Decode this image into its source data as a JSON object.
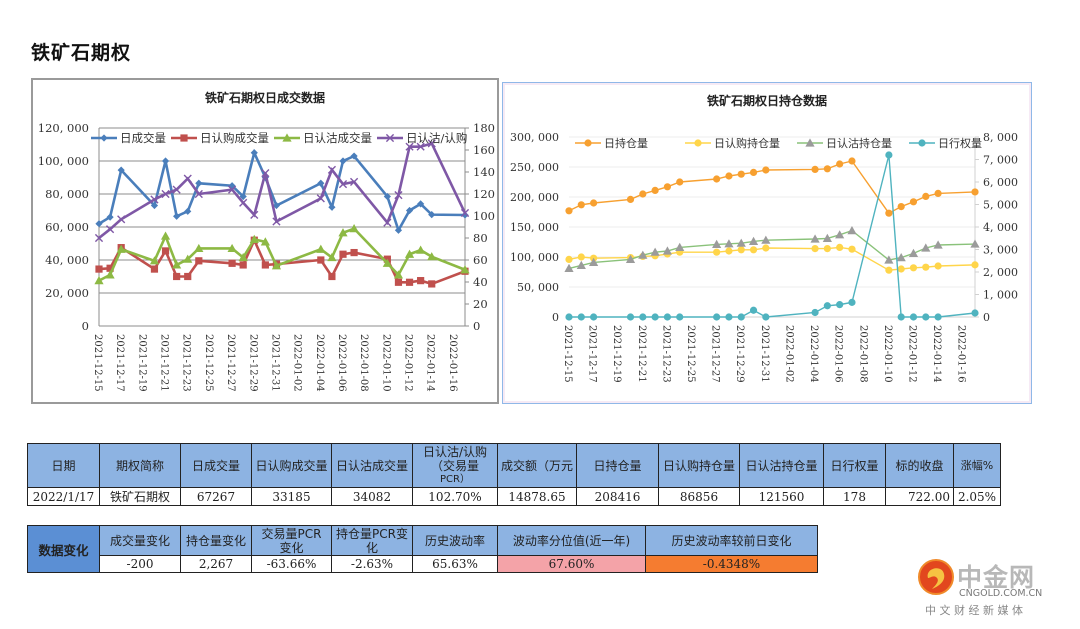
{
  "page": {
    "title": "铁矿石期权"
  },
  "chart_data": [
    {
      "type": "line",
      "title": "铁矿石期权日成交数据",
      "x_axis_type": "date",
      "xlim": [
        "2021-12-15",
        "2022-01-17"
      ],
      "x_tick_labels": [
        "2021-12-15",
        "2021-12-17",
        "2021-12-19",
        "2021-12-21",
        "2021-12-23",
        "2021-12-25",
        "2021-12-27",
        "2021-12-29",
        "2021-12-31",
        "2022-01-02",
        "2022-01-04",
        "2022-01-06",
        "2022-01-08",
        "2022-01-10",
        "2022-01-12",
        "2022-01-14",
        "2022-01-16"
      ],
      "x": [
        "2021-12-15",
        "2021-12-16",
        "2021-12-17",
        "2021-12-20",
        "2021-12-21",
        "2021-12-22",
        "2021-12-23",
        "2021-12-24",
        "2021-12-27",
        "2021-12-28",
        "2021-12-29",
        "2021-12-30",
        "2021-12-31",
        "2022-01-04",
        "2022-01-05",
        "2022-01-06",
        "2022-01-07",
        "2022-01-10",
        "2022-01-11",
        "2022-01-12",
        "2022-01-13",
        "2022-01-14",
        "2022-01-17"
      ],
      "y_left": {
        "ylim": [
          0,
          120000
        ],
        "ticks": [
          "0",
          "20, 000",
          "40, 000",
          "60, 000",
          "80, 000",
          "100, 000",
          "120, 000"
        ],
        "tick_values": [
          0,
          20000,
          40000,
          60000,
          80000,
          100000,
          120000
        ]
      },
      "y_right": {
        "ylim": [
          0,
          180
        ],
        "ticks": [
          "0",
          "20",
          "40",
          "60",
          "80",
          "100",
          "120",
          "140",
          "160",
          "180"
        ],
        "tick_values": [
          0,
          20,
          40,
          60,
          80,
          100,
          120,
          140,
          160,
          180
        ]
      },
      "legend_position": "top",
      "grid": true,
      "series": [
        {
          "name": "日成交量",
          "axis": "left",
          "color": "#4a7ebb",
          "marker": "diamond",
          "values": [
            62000,
            66000,
            94500,
            73000,
            100000,
            66500,
            69500,
            86500,
            85000,
            78500,
            105000,
            90000,
            73000,
            86500,
            72000,
            100000,
            103000,
            78500,
            58000,
            70000,
            74000,
            67500,
            67267
          ]
        },
        {
          "name": "日认购成交量",
          "axis": "left",
          "color": "#c0504d",
          "marker": "square",
          "values": [
            34500,
            35000,
            47500,
            34500,
            45500,
            30000,
            30000,
            39500,
            38000,
            37000,
            52000,
            37000,
            37500,
            40000,
            30000,
            43500,
            44500,
            40500,
            26500,
            26500,
            27500,
            25500,
            33185
          ]
        },
        {
          "name": "日认沽成交量",
          "axis": "left",
          "color": "#8db944",
          "marker": "triangle",
          "values": [
            27500,
            31000,
            46500,
            39500,
            54500,
            37000,
            40500,
            47000,
            47000,
            41500,
            52500,
            51000,
            36500,
            46500,
            41500,
            56500,
            59000,
            38000,
            31000,
            43500,
            46000,
            42000,
            34082
          ]
        },
        {
          "name": "日认沽/认购",
          "axis": "right",
          "color": "#7f58a6",
          "marker": "x",
          "values": [
            80,
            88,
            97,
            115,
            120,
            124,
            134,
            120,
            124,
            112,
            101,
            139,
            95,
            116,
            142,
            129,
            131,
            94,
            119,
            163,
            163,
            166,
            102.7
          ]
        }
      ]
    },
    {
      "type": "line",
      "title": "铁矿石期权日持仓数据",
      "x_axis_type": "date",
      "xlim": [
        "2021-12-15",
        "2022-01-17"
      ],
      "x_tick_labels": [
        "2021-12-15",
        "2021-12-17",
        "2021-12-19",
        "2021-12-21",
        "2021-12-23",
        "2021-12-25",
        "2021-12-27",
        "2021-12-29",
        "2021-12-31",
        "2022-01-02",
        "2022-01-04",
        "2022-01-06",
        "2022-01-08",
        "2022-01-10",
        "2022-01-12",
        "2022-01-14",
        "2022-01-16"
      ],
      "x": [
        "2021-12-15",
        "2021-12-16",
        "2021-12-17",
        "2021-12-20",
        "2021-12-21",
        "2021-12-22",
        "2021-12-23",
        "2021-12-24",
        "2021-12-27",
        "2021-12-28",
        "2021-12-29",
        "2021-12-30",
        "2021-12-31",
        "2022-01-04",
        "2022-01-05",
        "2022-01-06",
        "2022-01-07",
        "2022-01-10",
        "2022-01-11",
        "2022-01-12",
        "2022-01-13",
        "2022-01-14",
        "2022-01-17"
      ],
      "y_left": {
        "ylim": [
          0,
          300000
        ],
        "ticks": [
          "0",
          "50, 000",
          "100, 000",
          "150, 000",
          "200, 000",
          "250, 000",
          "300, 000"
        ],
        "tick_values": [
          0,
          50000,
          100000,
          150000,
          200000,
          250000,
          300000
        ]
      },
      "y_right": {
        "ylim": [
          0,
          8000
        ],
        "ticks": [
          "0",
          "1, 000",
          "2, 000",
          "3, 000",
          "4, 000",
          "5, 000",
          "6, 000",
          "7, 000",
          "8, 000"
        ],
        "tick_values": [
          0,
          1000,
          2000,
          3000,
          4000,
          5000,
          6000,
          7000,
          8000
        ]
      },
      "legend_position": "top",
      "grid": true,
      "series": [
        {
          "name": "日持仓量",
          "axis": "left",
          "color": "#f7a030",
          "marker": "circle",
          "values": [
            177000,
            187000,
            190000,
            196000,
            205000,
            211000,
            217000,
            225000,
            230000,
            235000,
            238000,
            241000,
            245000,
            246000,
            247000,
            255000,
            260000,
            173000,
            184000,
            192000,
            201000,
            206000,
            208416
          ]
        },
        {
          "name": "日认购持仓量",
          "axis": "left",
          "color": "#ffd54a",
          "marker": "circle",
          "values": [
            96000,
            100000,
            98000,
            99000,
            101000,
            102000,
            105000,
            108000,
            108000,
            110000,
            112000,
            112000,
            115000,
            114000,
            114000,
            116000,
            113000,
            78000,
            80000,
            82000,
            83000,
            85000,
            86856
          ]
        },
        {
          "name": "日认沽持仓量",
          "axis": "left",
          "color": "#8ac27a",
          "marker": "triangle",
          "values": [
            81000,
            86000,
            91000,
            96000,
            103000,
            108000,
            110000,
            116000,
            121000,
            122000,
            123000,
            126000,
            128000,
            130000,
            131000,
            137000,
            144000,
            95000,
            99000,
            106000,
            115000,
            120000,
            121560
          ]
        },
        {
          "name": "日行权量",
          "axis": "right",
          "color": "#4fb3bf",
          "marker": "circle",
          "values": [
            0,
            0,
            0,
            0,
            0,
            0,
            0,
            0,
            0,
            0,
            0,
            300,
            0,
            200,
            500,
            550,
            650,
            7200,
            0,
            0,
            0,
            0,
            178
          ]
        }
      ]
    }
  ],
  "table1": {
    "headers": [
      "日期",
      "期权简称",
      "日成交量",
      "日认购成交量",
      "日认沽成交量",
      "日认沽/认购（交易量PCR）",
      "成交额（万元",
      "日持仓量",
      "日认购持仓量",
      "日认沽持仓量",
      "日行权量",
      "标的收盘",
      "涨幅%"
    ],
    "header_lines": {
      "pcr": [
        "日认沽/认购",
        "（交易量",
        "PCR）"
      ]
    },
    "row": [
      "2022/1/17",
      "铁矿石期权",
      "67267",
      "33185",
      "34082",
      "102.70%",
      "14878.65",
      "208416",
      "86856",
      "121560",
      "178",
      "722.00",
      "2.05%"
    ]
  },
  "table2": {
    "side_label": "数据变化",
    "headers": [
      "成交量变化",
      "持仓量变化",
      "交易量PCR变化",
      "持仓量PCR变化",
      "历史波动率",
      "波动率分位值(近一年)",
      "历史波动率较前日变化"
    ],
    "header_lines": {
      "c3": [
        "交易量PCR",
        "变化"
      ],
      "c4": [
        "持仓量PCR变",
        "化"
      ]
    },
    "row": [
      "-200",
      "2,267",
      "-63.66%",
      "-2.63%",
      "65.63%",
      "67.60%",
      "-0.4348%"
    ],
    "highlight_colors": {
      "percentile": "#f4a3a8",
      "change": "#f57c30"
    }
  },
  "logo": {
    "name": "中金网",
    "domain": "CNGOLD.COM.CN",
    "tagline": "中 文 财 经 新 媒 体",
    "icon": "cngold-logo-icon"
  }
}
